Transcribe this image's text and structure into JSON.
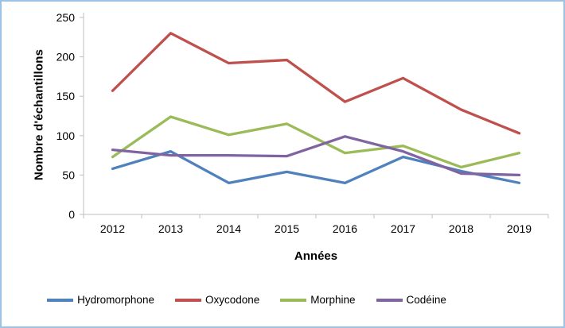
{
  "chart_data": {
    "type": "line",
    "title": "",
    "xlabel": "Années",
    "ylabel": "Nombre d'échantillons",
    "categories": [
      "2012",
      "2013",
      "2014",
      "2015",
      "2016",
      "2017",
      "2018",
      "2019"
    ],
    "series": [
      {
        "name": "Hydromorphone",
        "color": "#4F81BD",
        "values": [
          58,
          80,
          40,
          54,
          40,
          73,
          55,
          40
        ]
      },
      {
        "name": "Oxycodone",
        "color": "#C0504D",
        "values": [
          157,
          230,
          192,
          196,
          143,
          173,
          133,
          103
        ]
      },
      {
        "name": "Morphine",
        "color": "#9BBB59",
        "values": [
          73,
          124,
          101,
          115,
          78,
          87,
          60,
          78
        ]
      },
      {
        "name": "Codéine",
        "color": "#8064A2",
        "values": [
          82,
          75,
          75,
          74,
          99,
          80,
          52,
          50
        ]
      }
    ],
    "ylim": [
      0,
      250
    ],
    "ytick_step": 50,
    "legend_position": "bottom",
    "grid": false,
    "axis_color": "#BFBFBF",
    "frame_border_color": "#9CC3E5"
  }
}
